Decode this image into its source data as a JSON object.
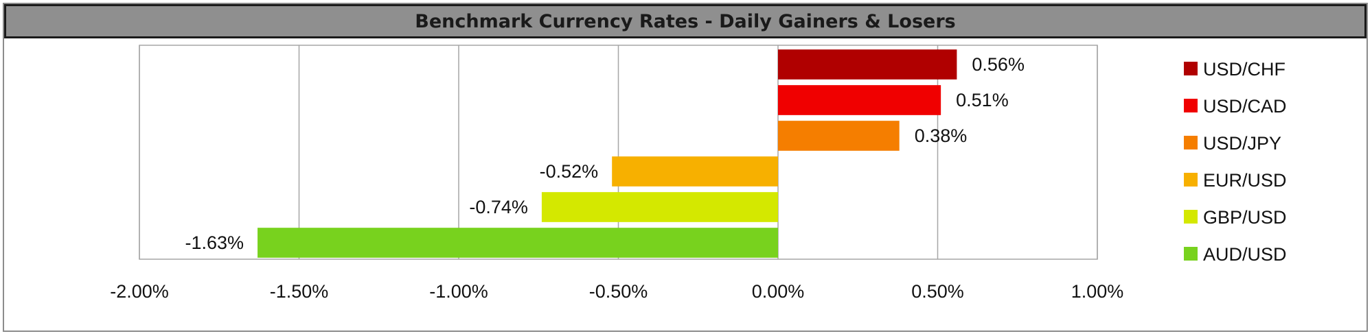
{
  "chart_data": {
    "type": "bar",
    "orientation": "horizontal",
    "title": "Benchmark Currency Rates - Daily Gainers & Losers",
    "categories": [
      "USD/CHF",
      "USD/CAD",
      "USD/JPY",
      "EUR/USD",
      "GBP/USD",
      "AUD/USD"
    ],
    "values": [
      0.56,
      0.51,
      0.38,
      -0.52,
      -0.74,
      -1.63
    ],
    "data_labels": [
      "0.56%",
      "0.51%",
      "0.38%",
      "-0.52%",
      "-0.74%",
      "-1.63%"
    ],
    "colors": [
      "#b00000",
      "#f00000",
      "#f57e00",
      "#f7b000",
      "#d4e800",
      "#78d21e"
    ],
    "xlim": [
      -2.0,
      1.0
    ],
    "x_ticks": [
      -2.0,
      -1.5,
      -1.0,
      -0.5,
      0.0,
      0.5,
      1.0
    ],
    "x_tick_labels": [
      "-2.00%",
      "-1.50%",
      "-1.00%",
      "-0.50%",
      "0.00%",
      "0.50%",
      "1.00%"
    ],
    "grid": "vertical",
    "legend": "right",
    "xlabel": "",
    "ylabel": ""
  }
}
